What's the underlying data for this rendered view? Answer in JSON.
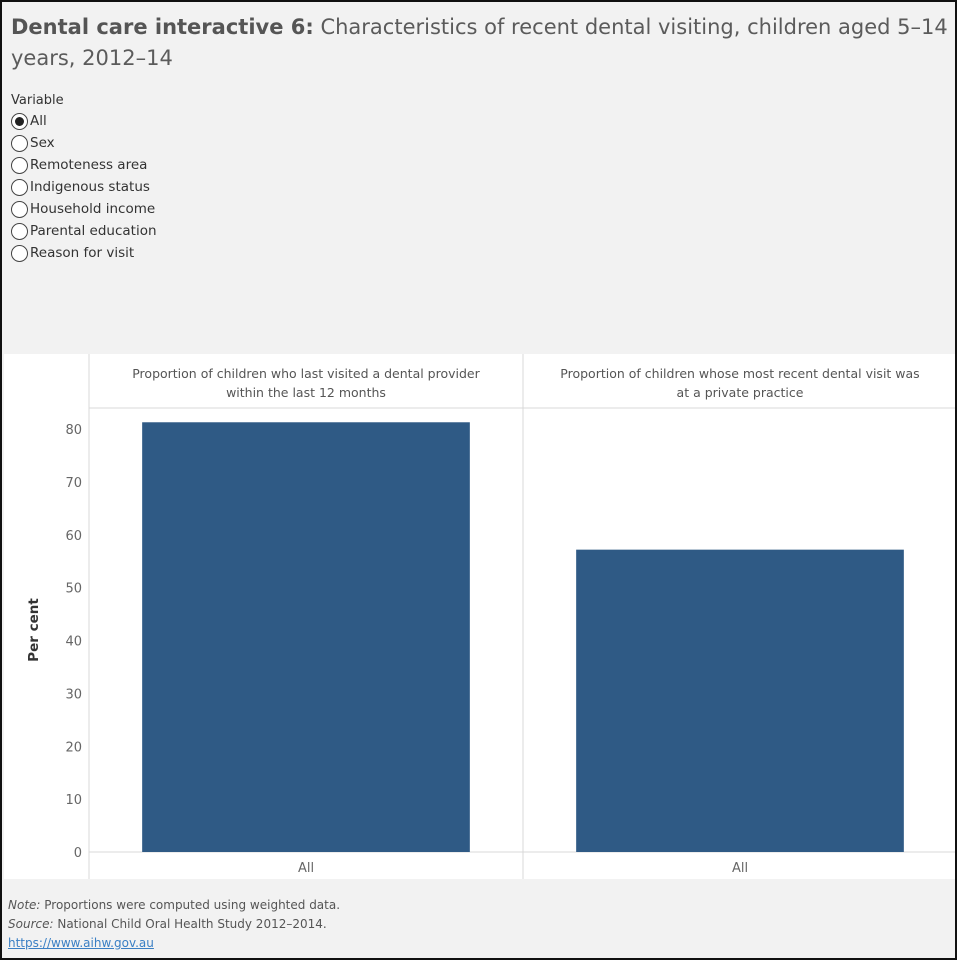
{
  "title": {
    "bold": "Dental care interactive 6:",
    "rest": " Characteristics of recent dental visiting, children aged 5–14 years, 2012–14"
  },
  "filter": {
    "label": "Variable",
    "options": [
      {
        "label": "All",
        "selected": true
      },
      {
        "label": "Sex",
        "selected": false
      },
      {
        "label": "Remoteness area",
        "selected": false
      },
      {
        "label": "Indigenous status",
        "selected": false
      },
      {
        "label": "Household income",
        "selected": false
      },
      {
        "label": "Parental education",
        "selected": false
      },
      {
        "label": "Reason for visit",
        "selected": false
      }
    ]
  },
  "chart_data": {
    "type": "bar",
    "ylabel": "Per cent",
    "ylim": [
      0,
      84
    ],
    "yticks": [
      0,
      10,
      20,
      30,
      40,
      50,
      60,
      70,
      80
    ],
    "grid": false,
    "bar_color": "#2f5a85",
    "panels": [
      {
        "title_lines": [
          "Proportion of children who last visited a dental provider",
          "within the last 12 months"
        ],
        "categories": [
          "All"
        ],
        "values": [
          81.3
        ]
      },
      {
        "title_lines": [
          "Proportion of children whose most recent dental visit was",
          "at a private practice"
        ],
        "categories": [
          "All"
        ],
        "values": [
          57.2
        ]
      }
    ]
  },
  "notes": {
    "note_label": "Note:",
    "note_text": " Proportions were computed using weighted data.",
    "source_label": "Source:",
    "source_text": " National Child Oral Health Study 2012–2014.",
    "link": "https://www.aihw.gov.au"
  }
}
